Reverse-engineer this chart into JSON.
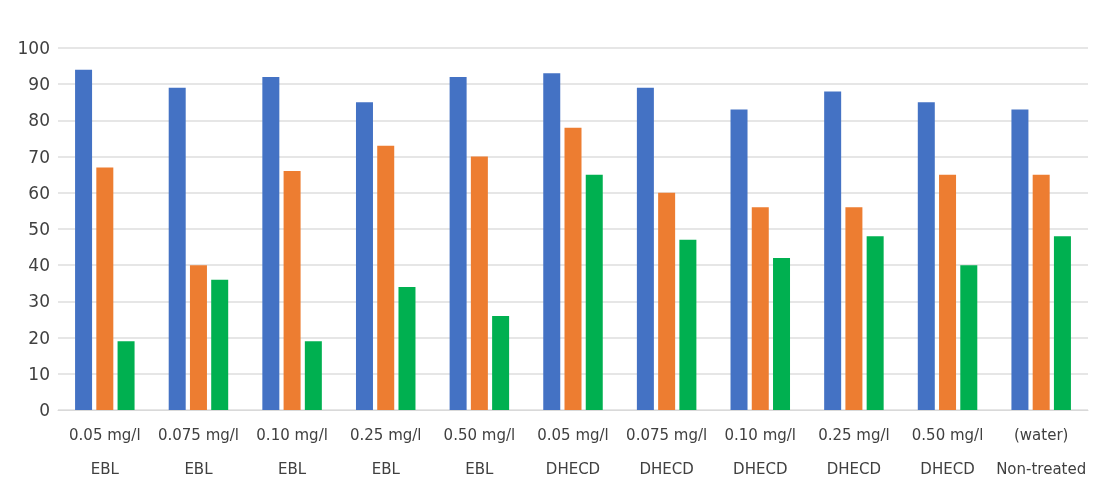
{
  "chart_data": {
    "type": "bar",
    "categories": [
      "0.05 mg/l\nEBL",
      "0.075 mg/l\nEBL",
      "0.10 mg/l\nEBL",
      "0.25 mg/l\nEBL",
      "0.50 mg/l\nEBL",
      "0.05 mg/l\nDHECD",
      "0.075 mg/l\nDHECD",
      "0.10 mg/l\nDHECD",
      "0.25 mg/l\nDHECD",
      "0.50 mg/l\nDHECD",
      "(water)\nNon-treated"
    ],
    "series": [
      {
        "color": "#4472c4",
        "values": [
          94,
          89,
          92,
          85,
          92,
          93,
          89,
          83,
          88,
          85,
          83
        ]
      },
      {
        "color": "#ed7d31",
        "values": [
          67,
          40,
          66,
          73,
          70,
          78,
          60,
          56,
          56,
          65,
          65
        ]
      },
      {
        "color": "#00b050",
        "values": [
          19,
          36,
          19,
          34,
          26,
          65,
          47,
          42,
          48,
          40,
          48
        ]
      }
    ],
    "ylim": [
      0,
      100
    ],
    "yticks": [
      0,
      10,
      20,
      30,
      40,
      50,
      60,
      70,
      80,
      90,
      100
    ],
    "grid": "y"
  }
}
